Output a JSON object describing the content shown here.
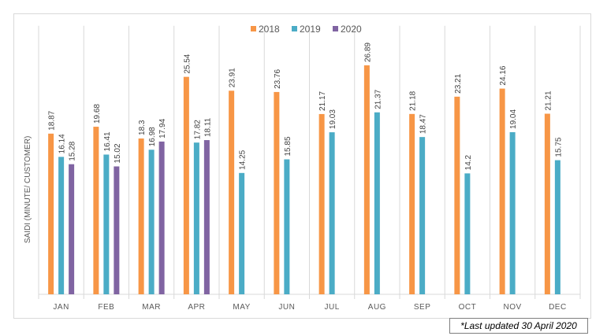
{
  "chart_data": {
    "type": "bar",
    "title": "",
    "xlabel": "",
    "ylabel": "SAIDI (MINUTE/ CUSTOMER)",
    "ylim": [
      0,
      32
    ],
    "grid": "vertical category separators",
    "legend_position": "top-center",
    "categories": [
      "JAN",
      "FEB",
      "MAR",
      "APR",
      "MAY",
      "JUN",
      "JUL",
      "AUG",
      "SEP",
      "OCT",
      "NOV",
      "DEC"
    ],
    "series": [
      {
        "name": "2018",
        "color": "#f79646",
        "values": [
          18.87,
          19.68,
          18.3,
          25.54,
          23.91,
          23.76,
          21.17,
          26.89,
          21.18,
          23.21,
          24.16,
          21.21
        ],
        "labels": [
          "18.87",
          "19.68",
          "18.3",
          "25.54",
          "23.91",
          "23.76",
          "21.17",
          "26.89",
          "21.18",
          "23.21",
          "24.16",
          "21.21"
        ]
      },
      {
        "name": "2019",
        "color": "#4bacc6",
        "values": [
          16.14,
          16.41,
          16.98,
          17.82,
          14.25,
          15.85,
          19.03,
          21.37,
          18.47,
          14.2,
          19.04,
          15.75
        ],
        "labels": [
          "16.14",
          "16.41",
          "16.98",
          "17.82",
          "14.25",
          "15.85",
          "19.03",
          "21.37",
          "18.47",
          "14.2",
          "19.04",
          "15.75"
        ]
      },
      {
        "name": "2020",
        "color": "#8064a2",
        "values": [
          15.28,
          15.02,
          17.94,
          18.11,
          null,
          null,
          null,
          null,
          null,
          null,
          null,
          null
        ],
        "labels": [
          "15.28",
          "15.02",
          "17.94",
          "18.11",
          null,
          null,
          null,
          null,
          null,
          null,
          null,
          null
        ]
      }
    ]
  },
  "footnote": "*Last updated 30 April 2020"
}
